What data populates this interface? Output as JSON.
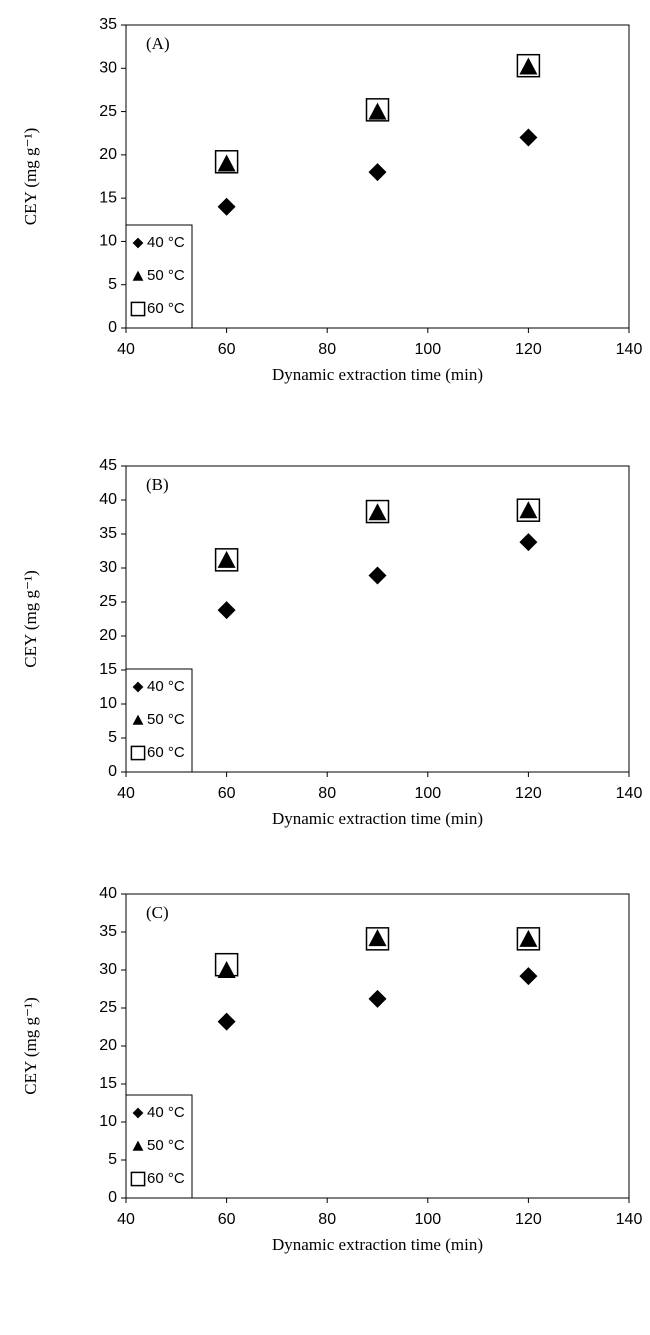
{
  "chart_data": [
    {
      "type": "scatter",
      "annotation": "(A)",
      "x_label": "Dynamic extraction time (min)",
      "y_label": "CEY (mg g⁻¹)",
      "x": [
        60,
        90,
        120
      ],
      "xlim": [
        40,
        140
      ],
      "xticks": [
        40,
        60,
        80,
        100,
        120,
        140
      ],
      "ylim": [
        0,
        35
      ],
      "yticks": [
        0,
        5,
        10,
        15,
        20,
        25,
        30,
        35
      ],
      "legend": "lower left",
      "series": [
        {
          "name": "40 °C",
          "marker": "diamond",
          "color": "#000000",
          "values": [
            14,
            18,
            22
          ]
        },
        {
          "name": "50 °C",
          "marker": "triangle",
          "color": "#000000",
          "values": [
            19,
            25,
            30.2
          ]
        },
        {
          "name": "60 °C",
          "marker": "square",
          "color": "#000000",
          "values": [
            19.2,
            25.2,
            30.3
          ]
        }
      ]
    },
    {
      "type": "scatter",
      "annotation": "(B)",
      "x_label": "Dynamic extraction time (min)",
      "y_label": "CEY (mg g⁻¹)",
      "x": [
        60,
        90,
        120
      ],
      "xlim": [
        40,
        140
      ],
      "xticks": [
        40,
        60,
        80,
        100,
        120,
        140
      ],
      "ylim": [
        0,
        45
      ],
      "yticks": [
        0,
        5,
        10,
        15,
        20,
        25,
        30,
        35,
        40,
        45
      ],
      "legend": "lower left",
      "series": [
        {
          "name": "40 °C",
          "marker": "diamond",
          "color": "#000000",
          "values": [
            23.8,
            28.9,
            33.8
          ]
        },
        {
          "name": "50 °C",
          "marker": "triangle",
          "color": "#000000",
          "values": [
            31.2,
            38.2,
            38.5
          ]
        },
        {
          "name": "60 °C",
          "marker": "square",
          "color": "#000000",
          "values": [
            31.2,
            38.3,
            38.5
          ]
        }
      ]
    },
    {
      "type": "scatter",
      "annotation": "(C)",
      "x_label": "Dynamic extraction time (min)",
      "y_label": "CEY (mg g⁻¹)",
      "x": [
        60,
        90,
        120
      ],
      "xlim": [
        40,
        140
      ],
      "xticks": [
        40,
        60,
        80,
        100,
        120,
        140
      ],
      "ylim": [
        0,
        40
      ],
      "yticks": [
        0,
        5,
        10,
        15,
        20,
        25,
        30,
        35,
        40
      ],
      "legend": "lower left",
      "series": [
        {
          "name": "40 °C",
          "marker": "diamond",
          "color": "#000000",
          "values": [
            23.2,
            26.2,
            29.2
          ]
        },
        {
          "name": "50 °C",
          "marker": "triangle",
          "color": "#000000",
          "values": [
            30,
            34.2,
            34.1
          ]
        },
        {
          "name": "60 °C",
          "marker": "square",
          "color": "#000000",
          "values": [
            30.7,
            34.1,
            34.1
          ]
        }
      ]
    }
  ]
}
